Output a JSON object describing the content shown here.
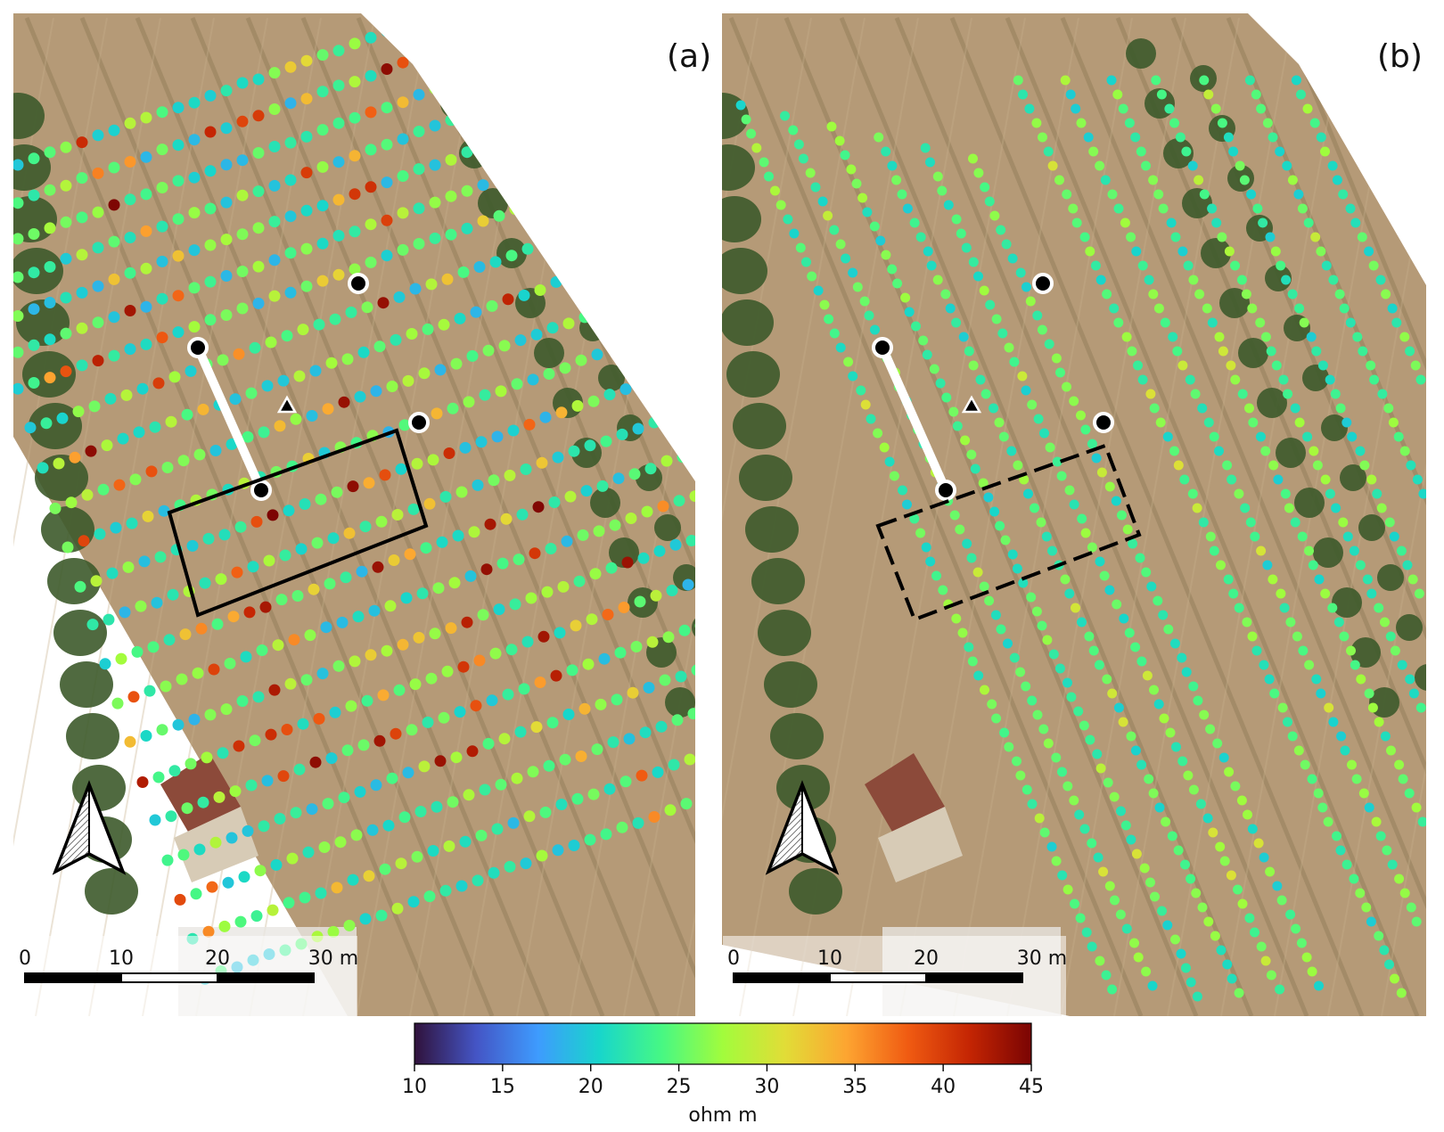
{
  "panels": [
    {
      "id": "a",
      "label": "(a)",
      "survey": "zigzag"
    },
    {
      "id": "b",
      "label": "(b)",
      "survey": "longitudinal"
    }
  ],
  "scale_bar": {
    "ticks": [
      "0",
      "10",
      "20",
      "30 m"
    ]
  },
  "colorbar": {
    "ticks": [
      "10",
      "15",
      "20",
      "25",
      "30",
      "35",
      "40",
      "45"
    ],
    "unit": "ohm m",
    "range": [
      10,
      45
    ],
    "colormap": "turbo"
  },
  "legend_symbols": {
    "electrode": "black circle",
    "center": "black triangle",
    "plot": "black rectangle"
  },
  "colors": {
    "field": "#b59a77",
    "tree": "#3d5a2b",
    "roof": "#8c4a3a",
    "line": "#ffffff",
    "outline": "#000000"
  }
}
